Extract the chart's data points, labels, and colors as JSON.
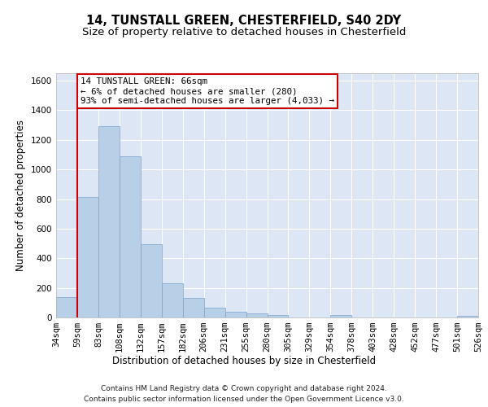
{
  "title1": "14, TUNSTALL GREEN, CHESTERFIELD, S40 2DY",
  "title2": "Size of property relative to detached houses in Chesterfield",
  "xlabel": "Distribution of detached houses by size in Chesterfield",
  "ylabel": "Number of detached properties",
  "bar_values": [
    135,
    815,
    1290,
    1090,
    495,
    230,
    130,
    65,
    40,
    28,
    15,
    0,
    0,
    15,
    0,
    0,
    0,
    0,
    0,
    12
  ],
  "categories": [
    "34sqm",
    "59sqm",
    "83sqm",
    "108sqm",
    "132sqm",
    "157sqm",
    "182sqm",
    "206sqm",
    "231sqm",
    "255sqm",
    "280sqm",
    "305sqm",
    "329sqm",
    "354sqm",
    "378sqm",
    "403sqm",
    "428sqm",
    "452sqm",
    "477sqm",
    "501sqm",
    "526sqm"
  ],
  "bar_color": "#b8cfe8",
  "bar_edge_color": "#7aa3cc",
  "vline_x_index": 1,
  "vline_color": "#cc0000",
  "ylim": [
    0,
    1650
  ],
  "yticks": [
    0,
    200,
    400,
    600,
    800,
    1000,
    1200,
    1400,
    1600
  ],
  "annotation_text": "14 TUNSTALL GREEN: 66sqm\n← 6% of detached houses are smaller (280)\n93% of semi-detached houses are larger (4,033) →",
  "annotation_box_color": "white",
  "annotation_box_edge": "#cc0000",
  "footer1": "Contains HM Land Registry data © Crown copyright and database right 2024.",
  "footer2": "Contains public sector information licensed under the Open Government Licence v3.0.",
  "background_color": "#dce6f5",
  "grid_color": "white",
  "title_fontsize": 10.5,
  "subtitle_fontsize": 9.5,
  "axis_label_fontsize": 8.5,
  "tick_fontsize": 7.5,
  "annotation_fontsize": 7.8,
  "footer_fontsize": 6.5
}
